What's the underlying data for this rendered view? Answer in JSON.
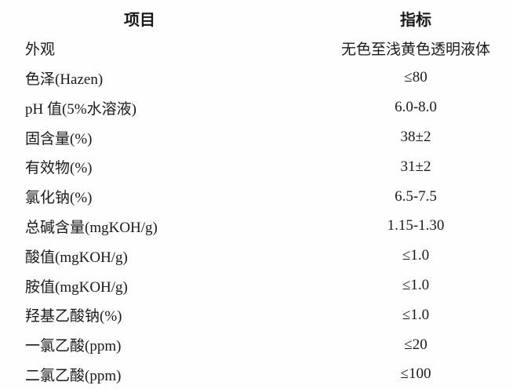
{
  "table": {
    "headers": {
      "item": "项目",
      "spec": "指标"
    },
    "rows": [
      {
        "item": "外观",
        "spec": "无色至浅黄色透明液体"
      },
      {
        "item": "色泽(Hazen)",
        "spec": "≤80"
      },
      {
        "item": "pH 值(5%水溶液)",
        "spec": "6.0-8.0"
      },
      {
        "item": "固含量(%)",
        "spec": "38±2"
      },
      {
        "item": "有效物(%)",
        "spec": "31±2"
      },
      {
        "item": "氯化钠(%)",
        "spec": "6.5-7.5"
      },
      {
        "item": "总碱含量(mgKOH/g)",
        "spec": "1.15-1.30"
      },
      {
        "item": "酸值(mgKOH/g)",
        "spec": "≤1.0"
      },
      {
        "item": "胺值(mgKOH/g)",
        "spec": "≤1.0"
      },
      {
        "item": "羟基乙酸钠(%)",
        "spec": "≤1.0"
      },
      {
        "item": "一氯乙酸(ppm)",
        "spec": "≤20"
      },
      {
        "item": "二氯乙酸(ppm)",
        "spec": "≤100"
      }
    ],
    "text_color": "#1a1a1a",
    "background_color": "#fefefe"
  }
}
